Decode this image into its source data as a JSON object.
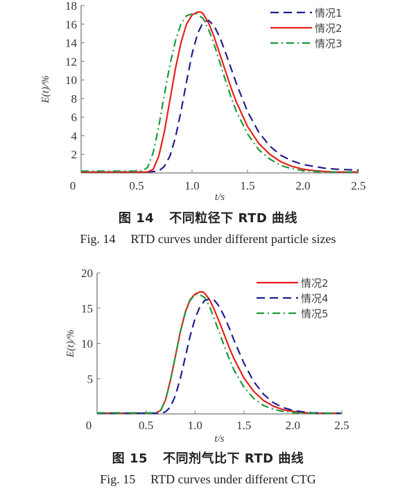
{
  "chart_data": [
    {
      "type": "line",
      "figure_label_cn": "图 14",
      "title_cn": "不同粒径下 RTD 曲线",
      "figure_label_en": "Fig. 14",
      "title_en": "RTD curves under different particle sizes",
      "xlabel": "t/s",
      "ylabel": "E(t)/%",
      "xlim": [
        0,
        2.5
      ],
      "ylim": [
        0,
        18
      ],
      "xticks": [
        "0",
        "0.5",
        "1.0",
        "1.5",
        "2.0",
        "2.5"
      ],
      "xtick_values": [
        0,
        0.5,
        1.0,
        1.5,
        2.0,
        2.5
      ],
      "yticks": [
        "2",
        "4",
        "6",
        "8",
        "10",
        "12",
        "14",
        "16",
        "18"
      ],
      "ytick_values": [
        2,
        4,
        6,
        8,
        10,
        12,
        14,
        16,
        18
      ],
      "grid": false,
      "legend_position": "top-right",
      "series": [
        {
          "name": "情况1",
          "color": "#1f1f8f",
          "style": "dashed",
          "x": [
            0,
            0.6,
            0.7,
            0.75,
            0.8,
            0.85,
            0.9,
            0.95,
            1.0,
            1.05,
            1.1,
            1.15,
            1.2,
            1.25,
            1.3,
            1.35,
            1.4,
            1.5,
            1.6,
            1.7,
            1.8,
            1.9,
            2.0,
            2.1,
            2.2,
            2.3,
            2.4,
            2.5
          ],
          "y": [
            0.1,
            0.1,
            0.2,
            0.7,
            1.8,
            3.8,
            6.6,
            9.8,
            12.8,
            15.0,
            16.2,
            16.4,
            15.8,
            14.6,
            13.0,
            11.3,
            9.6,
            6.6,
            4.4,
            2.9,
            1.9,
            1.3,
            0.9,
            0.7,
            0.5,
            0.4,
            0.35,
            0.3
          ]
        },
        {
          "name": "情况2",
          "color": "#e8201a",
          "style": "solid",
          "x": [
            0,
            0.6,
            0.65,
            0.7,
            0.75,
            0.8,
            0.85,
            0.9,
            0.95,
            1.0,
            1.05,
            1.08,
            1.1,
            1.15,
            1.2,
            1.25,
            1.3,
            1.35,
            1.4,
            1.5,
            1.6,
            1.7,
            1.8,
            1.9,
            2.0,
            2.1,
            2.2,
            2.3,
            2.4,
            2.5
          ],
          "y": [
            0.1,
            0.1,
            0.4,
            1.8,
            4.4,
            7.8,
            11.2,
            14.0,
            16.0,
            17.0,
            17.3,
            17.3,
            17.1,
            16.1,
            14.6,
            12.8,
            11.0,
            9.2,
            7.6,
            5.0,
            3.2,
            2.0,
            1.2,
            0.7,
            0.4,
            0.25,
            0.15,
            0.1,
            0.1,
            0.1
          ]
        },
        {
          "name": "情况3",
          "color": "#1a9a3a",
          "style": "dashdot",
          "x": [
            0,
            0.55,
            0.6,
            0.65,
            0.7,
            0.75,
            0.8,
            0.85,
            0.9,
            0.95,
            1.0,
            1.04,
            1.1,
            1.15,
            1.2,
            1.25,
            1.3,
            1.35,
            1.4,
            1.5,
            1.6,
            1.7,
            1.8,
            1.9,
            2.0,
            2.1,
            2.2,
            2.3,
            2.4,
            2.5
          ],
          "y": [
            0.2,
            0.2,
            0.6,
            2.2,
            5.0,
            8.4,
            11.6,
            14.2,
            16.0,
            16.9,
            17.1,
            17.1,
            16.6,
            15.4,
            13.8,
            11.9,
            10.0,
            8.2,
            6.6,
            4.2,
            2.5,
            1.5,
            0.8,
            0.45,
            0.25,
            0.15,
            0.1,
            0.1,
            0.1,
            0.1
          ]
        }
      ]
    },
    {
      "type": "line",
      "figure_label_cn": "图 15",
      "title_cn": "不同剂气比下 RTD 曲线",
      "figure_label_en": "Fig. 15",
      "title_en": "RTD curves under different CTG",
      "xlabel": "t/s",
      "ylabel": "E(t)/%",
      "xlim": [
        0,
        2.5
      ],
      "ylim": [
        0,
        20
      ],
      "xticks": [
        "0",
        "0.5",
        "1.0",
        "1.5",
        "2.0",
        "2.5"
      ],
      "xtick_values": [
        0,
        0.5,
        1.0,
        1.5,
        2.0,
        2.5
      ],
      "yticks": [
        "5",
        "10",
        "15",
        "20"
      ],
      "ytick_values": [
        5,
        10,
        15,
        20
      ],
      "grid": false,
      "legend_position": "top-right",
      "series": [
        {
          "name": "情况2",
          "color": "#e8201a",
          "style": "solid",
          "x": [
            0,
            0.6,
            0.65,
            0.7,
            0.75,
            0.8,
            0.85,
            0.9,
            0.95,
            1.0,
            1.05,
            1.08,
            1.1,
            1.15,
            1.2,
            1.25,
            1.3,
            1.35,
            1.4,
            1.5,
            1.6,
            1.7,
            1.8,
            1.9,
            2.0,
            2.1,
            2.2,
            2.3,
            2.4,
            2.5
          ],
          "y": [
            0.1,
            0.1,
            0.5,
            2.0,
            4.8,
            8.2,
            11.6,
            14.4,
            16.2,
            17.0,
            17.3,
            17.3,
            17.1,
            16.2,
            14.7,
            13.0,
            11.2,
            9.4,
            7.8,
            5.1,
            3.2,
            1.9,
            1.1,
            0.6,
            0.35,
            0.2,
            0.1,
            0.1,
            0.1,
            0.1
          ]
        },
        {
          "name": "情况4",
          "color": "#1f1f8f",
          "style": "dashed",
          "x": [
            0,
            0.65,
            0.7,
            0.75,
            0.8,
            0.85,
            0.9,
            0.95,
            1.0,
            1.05,
            1.1,
            1.15,
            1.18,
            1.2,
            1.25,
            1.3,
            1.35,
            1.4,
            1.5,
            1.6,
            1.7,
            1.8,
            1.9,
            2.0,
            2.1,
            2.2,
            2.3,
            2.4,
            2.5
          ],
          "y": [
            0.1,
            0.1,
            0.3,
            1.0,
            2.6,
            5.0,
            8.0,
            11.0,
            13.5,
            15.2,
            16.1,
            16.3,
            16.3,
            16.1,
            15.2,
            13.8,
            12.2,
            10.4,
            7.2,
            4.6,
            2.8,
            1.6,
            0.9,
            0.5,
            0.3,
            0.15,
            0.1,
            0.1,
            0.1
          ]
        },
        {
          "name": "情况5",
          "color": "#1a9a3a",
          "style": "dashdot",
          "x": [
            0,
            0.6,
            0.65,
            0.7,
            0.75,
            0.8,
            0.85,
            0.9,
            0.95,
            1.0,
            1.04,
            1.1,
            1.15,
            1.2,
            1.25,
            1.3,
            1.35,
            1.4,
            1.5,
            1.6,
            1.7,
            1.8,
            1.9,
            2.0,
            2.1,
            2.2,
            2.3,
            2.4,
            2.5
          ],
          "y": [
            0.15,
            0.15,
            0.5,
            2.0,
            4.8,
            8.2,
            11.6,
            14.3,
            16.1,
            16.9,
            17.0,
            16.5,
            15.2,
            13.4,
            11.5,
            9.6,
            7.8,
            6.2,
            3.8,
            2.2,
            1.2,
            0.65,
            0.35,
            0.2,
            0.1,
            0.1,
            0.1,
            0.1,
            0.1
          ]
        }
      ]
    }
  ]
}
